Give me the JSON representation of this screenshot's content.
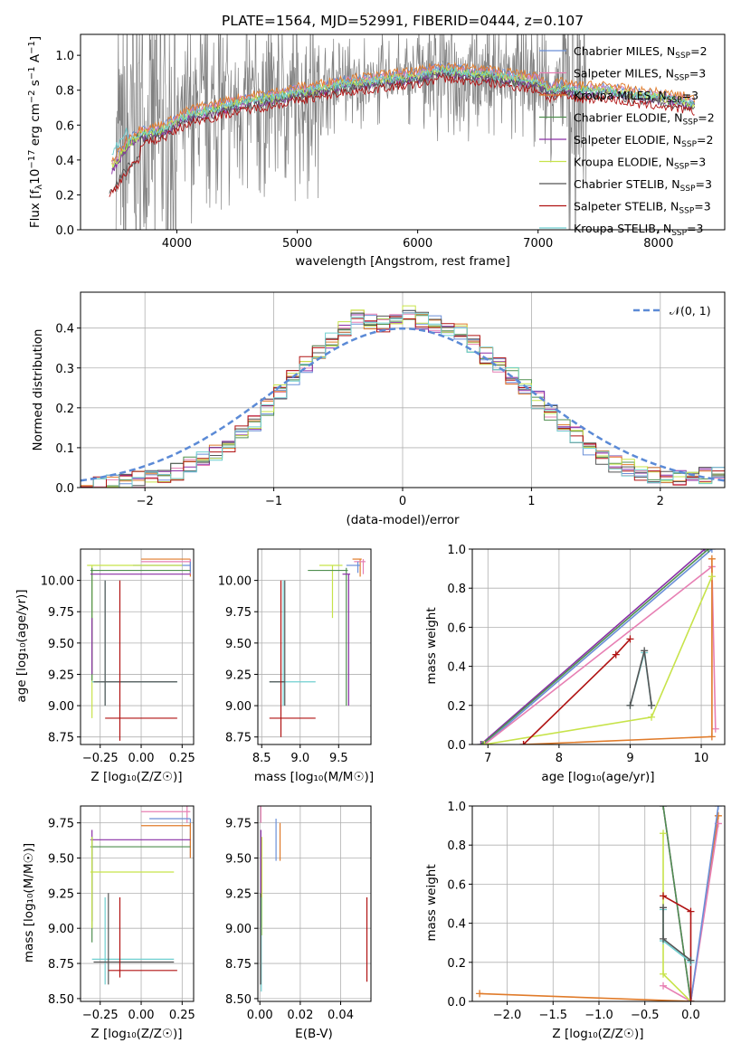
{
  "spectrum": {
    "title": "PLATE=1564, MJD=52991, FIBERID=0444, z=0.107",
    "xlabel": "wavelength [Angstrom, rest frame]",
    "ylabel_parts": [
      "Flux [f",
      "λ",
      "10",
      "−17",
      " erg cm",
      "−2",
      " s",
      "−1",
      " A",
      "−1",
      "]"
    ],
    "ylabel": "Flux [fλ10−17 erg cm−2 s−1 A−1]",
    "xlim": [
      3200,
      8550
    ],
    "ylim": [
      0,
      1.12
    ],
    "xticks": [
      "4000",
      "5000",
      "6000",
      "7000",
      "8000"
    ],
    "yticks": [
      "0.0",
      "0.2",
      "0.4",
      "0.6",
      "0.8",
      "1.0"
    ]
  },
  "legend": [
    {
      "name": "Chabrier MILES, N",
      "sub": "SSP",
      "eq": "=2",
      "color": "#6a8fd8"
    },
    {
      "name": "Salpeter MILES, N",
      "sub": "SSP",
      "eq": "=3",
      "color": "#e77fb3"
    },
    {
      "name": "Kroupa MILES, N",
      "sub": "SSP",
      "eq": "=3",
      "color": "#e07b2a"
    },
    {
      "name": "Chabrier ELODIE, N",
      "sub": "SSP",
      "eq": "=2",
      "color": "#4f8f4f"
    },
    {
      "name": "Salpeter ELODIE, N",
      "sub": "SSP",
      "eq": "=2",
      "color": "#8a2ea6"
    },
    {
      "name": "Kroupa ELODIE, N",
      "sub": "SSP",
      "eq": "=3",
      "color": "#c7e34a"
    },
    {
      "name": "Chabrier STELIB, N",
      "sub": "SSP",
      "eq": "=3",
      "color": "#555555"
    },
    {
      "name": "Salpeter STELIB, N",
      "sub": "SSP",
      "eq": "=3",
      "color": "#b01212"
    },
    {
      "name": "Kroupa STELIB, N",
      "sub": "SSP",
      "eq": "=3",
      "color": "#6fcfd0"
    }
  ],
  "residuals": {
    "xlabel": "(data-model)/error",
    "ylabel": "Normed distribution",
    "xlim": [
      -2.5,
      2.5
    ],
    "ylim": [
      0,
      0.49
    ],
    "xticks": [
      "−2",
      "−1",
      "0",
      "1",
      "2"
    ],
    "yticks": [
      "0.0",
      "0.1",
      "0.2",
      "0.3",
      "0.4"
    ],
    "gauss_label": "𝒩(0, 1)",
    "gauss_color": "#5b8ad6"
  },
  "panels": {
    "age_Z": {
      "xlabel": "Z [log₁₀(Z/Z☉)]",
      "ylabel": "age  [log₁₀(age/yr)]",
      "xticks": [
        "−0.25",
        "0.00",
        "0.25"
      ],
      "yticks": [
        "8.75",
        "9.00",
        "9.25",
        "9.50",
        "9.75",
        "10.00"
      ]
    },
    "age_mass": {
      "xlabel": "mass [log₁₀(M/M☉)]",
      "xticks": [
        "8.5",
        "9.0",
        "9.5"
      ],
      "yticks": [
        "8.75",
        "9.00",
        "9.25",
        "9.50",
        "9.75",
        "10.00"
      ]
    },
    "mw_age": {
      "xlabel": "age  [log₁₀(age/yr)]",
      "ylabel": "mass weight",
      "xticks": [
        "7",
        "8",
        "9",
        "10"
      ],
      "yticks": [
        "0.0",
        "0.2",
        "0.4",
        "0.6",
        "0.8",
        "1.0"
      ]
    },
    "mass_Z": {
      "xlabel": "Z [log₁₀(Z/Z☉)]",
      "ylabel": "mass [log₁₀(M/M☉)]",
      "xticks": [
        "−0.25",
        "0.00",
        "0.25"
      ],
      "yticks": [
        "8.50",
        "8.75",
        "9.00",
        "9.25",
        "9.50",
        "9.75"
      ]
    },
    "mass_ebv": {
      "xlabel": "E(B-V)",
      "xticks": [
        "0.00",
        "0.02",
        "0.04"
      ],
      "yticks": [
        "8.50",
        "8.75",
        "9.00",
        "9.25",
        "9.50",
        "9.75"
      ]
    },
    "mw_Z": {
      "xlabel": "Z [log₁₀(Z/Z☉)]",
      "ylabel": "mass weight",
      "xticks": [
        "−2.0",
        "−1.5",
        "−1.0",
        "−0.5",
        "0.0"
      ],
      "yticks": [
        "0.0",
        "0.2",
        "0.4",
        "0.6",
        "0.8",
        "1.0"
      ]
    }
  },
  "chart_data": [
    {
      "type": "line",
      "title": "PLATE=1564, MJD=52991, FIBERID=0444, z=0.107",
      "xlabel": "wavelength [Angstrom, rest frame]",
      "ylabel": "Flux [fλ10−17 erg cm−2 s−1 A−1]",
      "xlim": [
        3200,
        8550
      ],
      "ylim": [
        0,
        1.12
      ],
      "grid": false,
      "legend_position": "top-right",
      "observed_color": "#808080",
      "model_x": [
        3450,
        3600,
        3700,
        3800,
        3900,
        4000,
        4100,
        4200,
        4300,
        4400,
        4600,
        4800,
        5000,
        5200,
        5400,
        5600,
        5800,
        6000,
        6200,
        6400,
        6600,
        6800,
        7000,
        7100,
        7200,
        7300,
        7400,
        7600,
        7800,
        8000,
        8200,
        8300
      ],
      "model_y": [
        0.35,
        0.5,
        0.55,
        0.56,
        0.58,
        0.62,
        0.66,
        0.68,
        0.69,
        0.71,
        0.74,
        0.76,
        0.79,
        0.81,
        0.84,
        0.85,
        0.87,
        0.88,
        0.92,
        0.9,
        0.89,
        0.87,
        0.85,
        0.8,
        0.82,
        0.8,
        0.8,
        0.8,
        0.77,
        0.76,
        0.74,
        0.72
      ]
    },
    {
      "type": "line",
      "xlabel": "(data-model)/error",
      "ylabel": "Normed distribution",
      "xlim": [
        -2.5,
        2.5
      ],
      "ylim": [
        0,
        0.49
      ],
      "grid": true,
      "legend_position": "top-right",
      "series": [
        {
          "name": "𝒩(0, 1)",
          "x": [
            -2.5,
            -2.0,
            -1.5,
            -1.0,
            -0.5,
            0.0,
            0.5,
            1.0,
            1.5,
            2.0,
            2.5
          ],
          "y": [
            0.018,
            0.054,
            0.13,
            0.242,
            0.352,
            0.399,
            0.352,
            0.242,
            0.13,
            0.054,
            0.018
          ]
        }
      ],
      "histogram_bin_edges": [
        -2.5,
        -2.4,
        -2.3,
        -2.2,
        -2.1,
        -2.0,
        -1.9,
        -1.8,
        -1.7,
        -1.6,
        -1.5,
        -1.4,
        -1.3,
        -1.2,
        -1.1,
        -1.0,
        -0.9,
        -0.8,
        -0.7,
        -0.6,
        -0.5,
        -0.4,
        -0.3,
        -0.2,
        -0.1,
        0.0,
        0.1,
        0.2,
        0.3,
        0.4,
        0.5,
        0.6,
        0.7,
        0.8,
        0.9,
        1.0,
        1.1,
        1.2,
        1.3,
        1.4,
        1.5,
        1.6,
        1.7,
        1.8,
        1.9,
        2.0,
        2.1,
        2.2,
        2.3,
        2.4,
        2.5
      ],
      "histogram_heights": [
        0.0,
        0.005,
        0.01,
        0.015,
        0.02,
        0.025,
        0.035,
        0.04,
        0.06,
        0.07,
        0.09,
        0.11,
        0.14,
        0.16,
        0.2,
        0.24,
        0.28,
        0.31,
        0.34,
        0.37,
        0.4,
        0.43,
        0.42,
        0.41,
        0.43,
        0.44,
        0.42,
        0.41,
        0.4,
        0.39,
        0.36,
        0.33,
        0.31,
        0.28,
        0.25,
        0.22,
        0.19,
        0.16,
        0.13,
        0.1,
        0.08,
        0.06,
        0.05,
        0.04,
        0.03,
        0.025,
        0.02,
        0.02,
        0.03,
        0.035
      ]
    },
    {
      "type": "scatter",
      "xlabel": "Z [log₁₀(Z/Z☉)]",
      "ylabel": "age  [log₁₀(age/yr)]",
      "xlim": [
        -0.37,
        0.32
      ],
      "ylim": [
        8.69,
        10.25
      ],
      "errorbars": [
        {
          "color": "#e07b2a",
          "x": 0.3,
          "y": 10.17,
          "x0": 0.0,
          "x1": 0.3,
          "y0": 10.03,
          "y1": 10.17
        },
        {
          "color": "#e77fb3",
          "x": 0.3,
          "y": 10.15,
          "x0": 0.0,
          "x1": 0.3,
          "y0": 10.05,
          "y1": 10.17
        },
        {
          "color": "#6a8fd8",
          "x": 0.3,
          "y": 10.12,
          "x0": -0.05,
          "x1": 0.3,
          "y0": 10.06,
          "y1": 10.15
        },
        {
          "color": "#c7e34a",
          "x": -0.3,
          "y": 10.12,
          "x0": -0.33,
          "x1": 0.25,
          "y0": 8.9,
          "y1": 10.12
        },
        {
          "color": "#4f8f4f",
          "x": -0.3,
          "y": 10.08,
          "x0": -0.31,
          "x1": 0.3,
          "y0": 9.2,
          "y1": 10.1
        },
        {
          "color": "#8a2ea6",
          "x": -0.3,
          "y": 10.05,
          "x0": -0.31,
          "x1": 0.3,
          "y0": 9.25,
          "y1": 9.7
        },
        {
          "color": "#6fcfd0",
          "x": -0.22,
          "y": 9.19,
          "x0": -0.3,
          "x1": 0.22,
          "y0": 9.0,
          "y1": 10.0
        },
        {
          "color": "#555555",
          "x": -0.22,
          "y": 9.19,
          "x0": -0.29,
          "x1": 0.22,
          "y0": 9.0,
          "y1": 10.0
        },
        {
          "color": "#b01212",
          "x": -0.13,
          "y": 8.9,
          "x0": -0.22,
          "x1": 0.22,
          "y0": 8.72,
          "y1": 10.0
        }
      ]
    },
    {
      "type": "scatter",
      "xlabel": "mass [log₁₀(M/M☉)]",
      "xlim": [
        8.45,
        9.92
      ],
      "ylim": [
        8.69,
        10.25
      ],
      "errorbars": [
        {
          "color": "#e07b2a",
          "x": 9.78,
          "y": 10.17,
          "x0": 9.68,
          "x1": 9.8,
          "y0": 10.03,
          "y1": 10.17
        },
        {
          "color": "#e77fb3",
          "x": 9.82,
          "y": 10.15,
          "x0": 9.7,
          "x1": 9.85,
          "y0": 10.05,
          "y1": 10.17
        },
        {
          "color": "#6a8fd8",
          "x": 9.75,
          "y": 10.12,
          "x0": 9.6,
          "x1": 9.78,
          "y0": 10.06,
          "y1": 10.15
        },
        {
          "color": "#c7e34a",
          "x": 9.42,
          "y": 10.12,
          "x0": 9.25,
          "x1": 9.55,
          "y0": 9.7,
          "y1": 10.12
        },
        {
          "color": "#4f8f4f",
          "x": 9.6,
          "y": 10.08,
          "x0": 9.1,
          "x1": 9.62,
          "y0": 9.0,
          "y1": 10.1
        },
        {
          "color": "#8a2ea6",
          "x": 9.63,
          "y": 10.05,
          "x0": 9.55,
          "x1": 9.65,
          "y0": 9.0,
          "y1": 10.05
        },
        {
          "color": "#6fcfd0",
          "x": 8.78,
          "y": 9.19,
          "x0": 8.6,
          "x1": 9.2,
          "y0": 9.0,
          "y1": 10.0
        },
        {
          "color": "#555555",
          "x": 8.8,
          "y": 9.19,
          "x0": 8.6,
          "x1": 8.8,
          "y0": 9.0,
          "y1": 10.0
        },
        {
          "color": "#b01212",
          "x": 8.75,
          "y": 8.9,
          "x0": 8.6,
          "x1": 9.2,
          "y0": 8.75,
          "y1": 10.0
        }
      ]
    },
    {
      "type": "line",
      "xlabel": "age  [log₁₀(age/yr)]",
      "ylabel": "mass weight",
      "xlim": [
        6.78,
        10.33
      ],
      "ylim": [
        0,
        1
      ],
      "grid": true,
      "series": [
        {
          "color": "#6a8fd8",
          "x": [
            6.95,
            10.15
          ],
          "y": [
            0.0,
            1.0
          ]
        },
        {
          "color": "#e77fb3",
          "x": [
            6.95,
            10.15,
            10.2
          ],
          "y": [
            0.0,
            0.91,
            0.08
          ]
        },
        {
          "color": "#e07b2a",
          "x": [
            7.5,
            10.15,
            10.15
          ],
          "y": [
            0.0,
            0.04,
            0.95
          ]
        },
        {
          "color": "#8a2ea6",
          "x": [
            6.9,
            10.05
          ],
          "y": [
            0.0,
            1.0
          ]
        },
        {
          "color": "#4f8f4f",
          "x": [
            6.92,
            10.1
          ],
          "y": [
            0.0,
            1.0
          ]
        },
        {
          "color": "#c7e34a",
          "x": [
            6.95,
            9.3,
            10.15
          ],
          "y": [
            0.0,
            0.14,
            0.86
          ]
        },
        {
          "color": "#b01212",
          "x": [
            7.5,
            8.8,
            9.0
          ],
          "y": [
            0.0,
            0.46,
            0.54
          ]
        },
        {
          "color": "#6fcfd0",
          "x": [
            9.0,
            9.2,
            9.3
          ],
          "y": [
            0.2,
            0.47,
            0.2
          ]
        },
        {
          "color": "#555555",
          "x": [
            9.0,
            9.2,
            9.3
          ],
          "y": [
            0.2,
            0.48,
            0.2
          ]
        }
      ]
    },
    {
      "type": "scatter",
      "xlabel": "Z [log₁₀(Z/Z☉)]",
      "ylabel": "mass [log₁₀(M/M☉)]",
      "xlim": [
        -0.37,
        0.32
      ],
      "ylim": [
        8.48,
        9.87
      ],
      "errorbars": [
        {
          "color": "#e77fb3",
          "x": 0.28,
          "y": 9.83,
          "x0": 0.0,
          "x1": 0.3,
          "y0": 9.75,
          "y1": 9.87
        },
        {
          "color": "#6a8fd8",
          "x": 0.3,
          "y": 9.78,
          "x0": 0.05,
          "x1": 0.3,
          "y0": 9.5,
          "y1": 9.78
        },
        {
          "color": "#e07b2a",
          "x": 0.3,
          "y": 9.73,
          "x0": 0.0,
          "x1": 0.3,
          "y0": 9.5,
          "y1": 9.75
        },
        {
          "color": "#8a2ea6",
          "x": -0.3,
          "y": 9.63,
          "x0": -0.31,
          "x1": 0.3,
          "y0": 9.05,
          "y1": 9.7
        },
        {
          "color": "#4f8f4f",
          "x": -0.3,
          "y": 9.58,
          "x0": -0.31,
          "x1": 0.3,
          "y0": 8.9,
          "y1": 9.65
        },
        {
          "color": "#c7e34a",
          "x": -0.3,
          "y": 9.4,
          "x0": -0.31,
          "x1": 0.2,
          "y0": 9.0,
          "y1": 9.65
        },
        {
          "color": "#6fcfd0",
          "x": -0.22,
          "y": 8.78,
          "x0": -0.3,
          "x1": 0.2,
          "y0": 8.6,
          "y1": 9.22
        },
        {
          "color": "#555555",
          "x": -0.2,
          "y": 8.76,
          "x0": -0.29,
          "x1": 0.2,
          "y0": 8.6,
          "y1": 9.25
        },
        {
          "color": "#b01212",
          "x": -0.13,
          "y": 8.7,
          "x0": -0.2,
          "x1": 0.22,
          "y0": 8.65,
          "y1": 9.22
        }
      ]
    },
    {
      "type": "scatter",
      "xlabel": "E(B-V)",
      "xlim": [
        -0.001,
        0.055
      ],
      "ylim": [
        8.48,
        9.87
      ],
      "errorbars": [
        {
          "color": "#6a8fd8",
          "x": 0.008,
          "y": 9.63,
          "x0": 0.008,
          "x1": 0.008,
          "y0": 9.48,
          "y1": 9.78
        },
        {
          "color": "#e07b2a",
          "x": 0.01,
          "y": 9.62,
          "x0": 0.01,
          "x1": 0.01,
          "y0": 9.48,
          "y1": 9.75
        },
        {
          "color": "#e77fb3",
          "x": 0.0005,
          "y": 9.8,
          "x0": 0.0005,
          "x1": 0.0005,
          "y0": 9.75,
          "y1": 9.87
        },
        {
          "color": "#c7e34a",
          "x": 0.001,
          "y": 9.3,
          "x0": 0.001,
          "x1": 0.001,
          "y0": 8.95,
          "y1": 9.65
        },
        {
          "color": "#8a2ea6",
          "x": 0.0005,
          "y": 9.4,
          "x0": 0.0005,
          "x1": 0.0005,
          "y0": 9.05,
          "y1": 9.7
        },
        {
          "color": "#6fcfd0",
          "x": 0.0007,
          "y": 8.9,
          "x0": 0.0007,
          "x1": 0.0007,
          "y0": 8.55,
          "y1": 9.22
        },
        {
          "color": "#555555",
          "x": 0.0004,
          "y": 8.9,
          "x0": 0.0004,
          "x1": 0.0004,
          "y0": 8.6,
          "y1": 9.25
        },
        {
          "color": "#b01212",
          "x": 0.053,
          "y": 8.92,
          "x0": 0.053,
          "x1": 0.053,
          "y0": 8.62,
          "y1": 9.22
        }
      ]
    },
    {
      "type": "line",
      "xlabel": "Z [log₁₀(Z/Z☉)]",
      "ylabel": "mass weight",
      "xlim": [
        -2.38,
        0.37
      ],
      "ylim": [
        0,
        1
      ],
      "grid": true,
      "series": [
        {
          "color": "#e07b2a",
          "x": [
            -2.3,
            0.0,
            0.3
          ],
          "y": [
            0.04,
            0.0,
            0.95
          ]
        },
        {
          "color": "#e77fb3",
          "x": [
            -0.3,
            0.0,
            0.3
          ],
          "y": [
            0.08,
            0.0,
            0.91
          ]
        },
        {
          "color": "#6a8fd8",
          "x": [
            0.0,
            0.3
          ],
          "y": [
            0.0,
            1.0
          ]
        },
        {
          "color": "#8a2ea6",
          "x": [
            -0.3,
            0.0
          ],
          "y": [
            1.0,
            0.0
          ]
        },
        {
          "color": "#4f8f4f",
          "x": [
            -0.3,
            0.0
          ],
          "y": [
            1.0,
            0.0
          ]
        },
        {
          "color": "#c7e34a",
          "x": [
            -0.3,
            -0.3,
            0.0
          ],
          "y": [
            0.86,
            0.14,
            0.0
          ]
        },
        {
          "color": "#b01212",
          "x": [
            -0.3,
            0.0,
            0.0
          ],
          "y": [
            0.54,
            0.46,
            0.0
          ]
        },
        {
          "color": "#6fcfd0",
          "x": [
            -0.3,
            -0.3,
            0.0
          ],
          "y": [
            0.47,
            0.31,
            0.2
          ]
        },
        {
          "color": "#555555",
          "x": [
            -0.3,
            -0.3,
            0.0
          ],
          "y": [
            0.48,
            0.32,
            0.21
          ]
        }
      ]
    }
  ]
}
